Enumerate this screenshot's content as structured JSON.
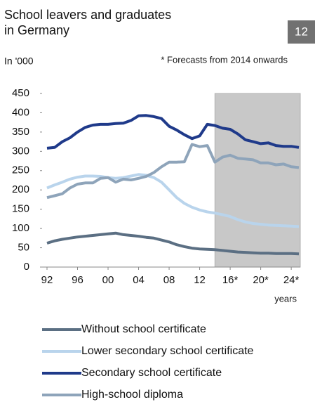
{
  "chart_data": {
    "type": "line",
    "title": "School leavers and graduates in Germany",
    "badge": "12",
    "subtitle": "In '000",
    "annotation": "* Forecasts from 2014 onwards",
    "x_label": "years",
    "forecast_region": [
      2014,
      2025
    ],
    "x": [
      1992,
      1993,
      1994,
      1995,
      1996,
      1997,
      1998,
      1999,
      2000,
      2001,
      2002,
      2003,
      2004,
      2005,
      2006,
      2007,
      2008,
      2009,
      2010,
      2011,
      2012,
      2013,
      2014,
      2015,
      2016,
      2017,
      2018,
      2019,
      2020,
      2021,
      2022,
      2023,
      2024,
      2025
    ],
    "xlim": [
      1992,
      2025
    ],
    "xticks": [
      {
        "value": 1992,
        "label": "92"
      },
      {
        "value": 1996,
        "label": "96"
      },
      {
        "value": 2000,
        "label": "00"
      },
      {
        "value": 2004,
        "label": "04"
      },
      {
        "value": 2008,
        "label": "08"
      },
      {
        "value": 2012,
        "label": "12"
      },
      {
        "value": 2016,
        "label": "16*"
      },
      {
        "value": 2020,
        "label": "20*"
      },
      {
        "value": 2024,
        "label": "24*"
      }
    ],
    "ylim": [
      0,
      450
    ],
    "yticks": [
      0,
      50,
      100,
      150,
      200,
      250,
      300,
      350,
      400,
      450
    ],
    "grid": false,
    "series": [
      {
        "name": "Without school certificate",
        "color": "#5b6f83",
        "values": [
          62,
          68,
          72,
          75,
          78,
          80,
          82,
          84,
          86,
          88,
          84,
          82,
          80,
          77,
          75,
          70,
          65,
          58,
          53,
          49,
          47,
          46,
          45,
          43,
          41,
          39,
          38,
          37,
          36,
          36,
          35,
          35,
          35,
          34
        ]
      },
      {
        "name": "Lower secondary school certificate",
        "color": "#b9d4ec",
        "values": [
          205,
          213,
          220,
          228,
          233,
          236,
          236,
          235,
          232,
          230,
          232,
          236,
          240,
          238,
          232,
          220,
          200,
          180,
          165,
          155,
          148,
          143,
          140,
          136,
          131,
          123,
          117,
          113,
          111,
          109,
          108,
          107,
          106,
          105
        ]
      },
      {
        "name": "Secondary school certificate",
        "color": "#1f3a8a",
        "values": [
          308,
          310,
          325,
          335,
          350,
          362,
          368,
          370,
          370,
          372,
          373,
          380,
          392,
          393,
          390,
          385,
          365,
          355,
          343,
          333,
          340,
          370,
          367,
          360,
          357,
          345,
          330,
          325,
          320,
          322,
          315,
          313,
          313,
          310
        ]
      },
      {
        "name": "High-school diploma",
        "color": "#8ea4ba",
        "values": [
          180,
          185,
          190,
          205,
          215,
          218,
          218,
          230,
          232,
          220,
          228,
          226,
          230,
          235,
          245,
          260,
          272,
          272,
          273,
          318,
          312,
          315,
          272,
          285,
          290,
          282,
          280,
          278,
          270,
          270,
          265,
          267,
          260,
          258
        ]
      }
    ]
  }
}
